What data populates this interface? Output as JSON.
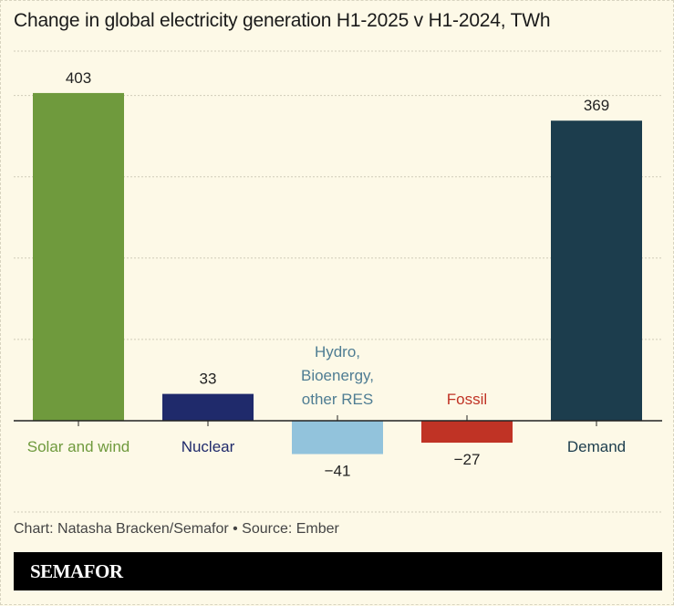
{
  "chart_data": {
    "type": "bar",
    "title": "Change in global electricity generation H1-2025 v H1-2024, TWh",
    "categories": [
      "Solar and wind",
      "Nuclear",
      "Hydro, Bioenergy, other RES",
      "Fossil",
      "Demand"
    ],
    "category_label_lines": [
      [
        "Solar and wind"
      ],
      [
        "Nuclear"
      ],
      [
        "Hydro,",
        "Bioenergy,",
        "other RES"
      ],
      [
        "Fossil"
      ],
      [
        "Demand"
      ]
    ],
    "values": [
      403,
      33,
      -41,
      -27,
      369
    ],
    "value_labels": [
      "403",
      "33",
      "−41",
      "−27",
      "369"
    ],
    "colors": [
      "#6f9a3d",
      "#1f2a6b",
      "#92c3dc",
      "#c03325",
      "#1c3d4d"
    ],
    "label_colors": [
      "#6f9a3d",
      "#1f2a6b",
      "#4f7d93",
      "#c03325",
      "#1c3d4d"
    ],
    "ylim": [
      -100,
      420
    ],
    "gridlines": [
      100,
      200,
      300,
      400
    ],
    "grid": true,
    "xlabel": "",
    "ylabel": ""
  },
  "credit": "Chart: Natasha Bracken/Semafor • Source: Ember",
  "brand": "SEMAFOR"
}
